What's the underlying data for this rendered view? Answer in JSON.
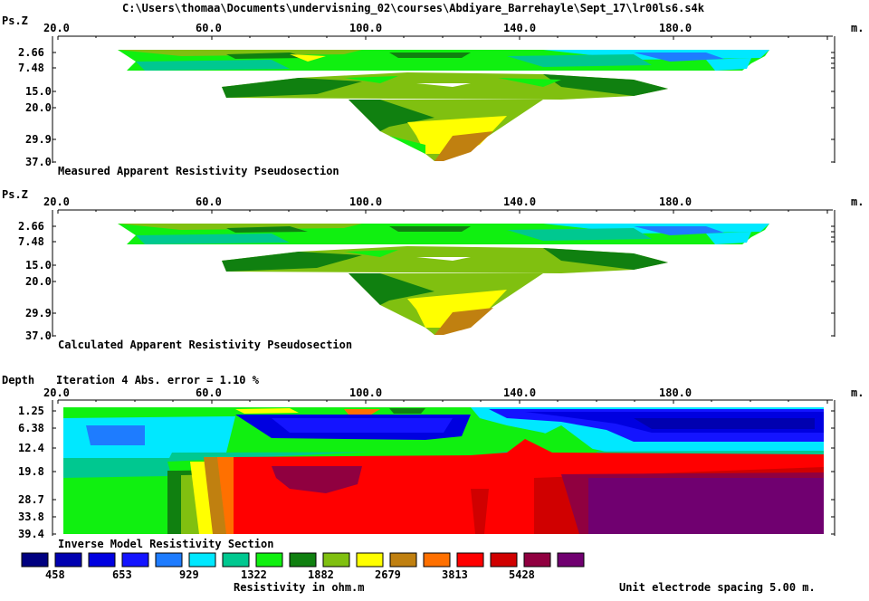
{
  "window": {
    "title": "C:\\Users\\thomaa\\Documents\\undervisning_02\\courses\\Abdiyare_Barrehayle\\Sept_17\\lr00ls6.s4k"
  },
  "units": {
    "distance": "m."
  },
  "panels": [
    {
      "id": "measured",
      "axis_label": "Ps.Z",
      "x_ticks": [
        "20.0",
        "60.0",
        "100.0",
        "140.0",
        "180.0"
      ],
      "y_ticks": [
        "2.66",
        "7.48",
        "15.0",
        "20.0",
        "29.9",
        "37.0"
      ],
      "caption": "Measured Apparent Resistivity Pseudosection"
    },
    {
      "id": "calculated",
      "axis_label": "Ps.Z",
      "x_ticks": [
        "20.0",
        "60.0",
        "100.0",
        "140.0",
        "180.0"
      ],
      "y_ticks": [
        "2.66",
        "7.48",
        "15.0",
        "20.0",
        "29.9",
        "37.0"
      ],
      "caption": "Calculated Apparent Resistivity Pseudosection"
    },
    {
      "id": "inverse",
      "axis_label": "Depth",
      "iteration_text": "Iteration 4 Abs. error = 1.10 %",
      "x_ticks": [
        "20.0",
        "60.0",
        "100.0",
        "140.0",
        "180.0"
      ],
      "y_ticks": [
        "1.25",
        "6.38",
        "12.4",
        "19.8",
        "28.7",
        "33.8",
        "39.4"
      ],
      "caption": "Inverse Model Resistivity Section"
    }
  ],
  "legend": {
    "colors": [
      "#000080",
      "#0000b0",
      "#0000e0",
      "#1414ff",
      "#1e7cff",
      "#00e8ff",
      "#00c890",
      "#10f010",
      "#108010",
      "#80c010",
      "#ffff00",
      "#c08010",
      "#ff7000",
      "#ff0000",
      "#d00000",
      "#900040",
      "#700070"
    ],
    "labels": [
      "458",
      "653",
      "929",
      "1322",
      "1882",
      "2679",
      "3813",
      "5428"
    ],
    "title": "Resistivity in ohm.m"
  },
  "footer": {
    "spacing_text": "Unit electrode spacing 5.00 m."
  }
}
